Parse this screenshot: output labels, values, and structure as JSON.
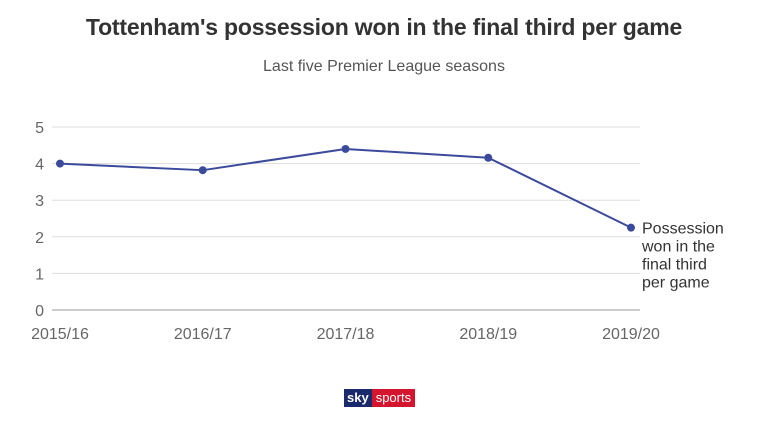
{
  "chart_data": {
    "type": "line",
    "title": "Tottenham's possession won in the final third per game",
    "subtitle": "Last five Premier League seasons",
    "categories": [
      "2015/16",
      "2016/17",
      "2017/18",
      "2018/19",
      "2019/20"
    ],
    "series": [
      {
        "name": "Possession won in the final third per game",
        "name_lines": [
          "Possession",
          "won in the",
          "final third",
          "per game"
        ],
        "values": [
          4.0,
          3.82,
          4.4,
          4.16,
          2.25
        ],
        "color": "#3c4a9c"
      }
    ],
    "yticks": [
      "0",
      "1",
      "2",
      "3",
      "4",
      "5"
    ],
    "ylim": [
      0,
      5
    ],
    "grid": true,
    "gridColor": "#dddddd",
    "legend": "end-of-line label"
  },
  "logo": {
    "sky": "sky",
    "sports": "sports"
  }
}
